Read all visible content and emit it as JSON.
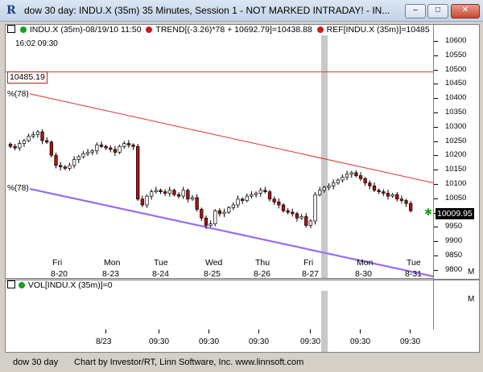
{
  "window": {
    "title": "dow 30 day: INDU.X (35m) 35 Minutes, Session 1 - NOT MARKED INTRADAY! - IN...",
    "minimize_label": "–",
    "maximize_label": "□",
    "close_label": "✕"
  },
  "header": {
    "symbol_label": "INDU.X (35m)-08/19/10 11:50",
    "trend_label": "TREND[(-3.26)*78 + 10692.79]=10438.88",
    "ref_label": "REF[INDU.X (35m)]=10485"
  },
  "chart": {
    "time_readout": "16:02  09:30",
    "ref_price_box": "10485.19",
    "trend_upper_label": "%(78)",
    "trend_lower_label": "%(78)",
    "last_price": "10009.95",
    "mode_letter": "M",
    "day_labels": [
      {
        "dow": "Fri",
        "date": "8-20"
      },
      {
        "dow": "Mon",
        "date": "8-23"
      },
      {
        "dow": "Tue",
        "date": "8-24"
      },
      {
        "dow": "Wed",
        "date": "8-25"
      },
      {
        "dow": "Thu",
        "date": "8-26"
      },
      {
        "dow": "Fri",
        "date": "8-27"
      },
      {
        "dow": "Mon",
        "date": "8-30"
      },
      {
        "dow": "Tue",
        "date": "8-31"
      }
    ],
    "y_ticks": [
      "10600",
      "10550",
      "10500",
      "10450",
      "10400",
      "10350",
      "10300",
      "10250",
      "10200",
      "10150",
      "10100",
      "10050",
      "10000",
      "9950",
      "9900",
      "9850",
      "9800"
    ],
    "colors": {
      "trend_upper": "#e03030",
      "trend_lower": "#9a6cf0",
      "ref_line": "#e03030",
      "candle": "#b01010",
      "cursor": "#c8c8c8"
    }
  },
  "volume": {
    "label": "VOL[INDU.X (35m)]=0",
    "mode_letter": "M"
  },
  "bottom_axis": {
    "labels": [
      "8/23",
      "09:30",
      "09:30",
      "09:30",
      "09:30",
      "09:30",
      "09:30"
    ]
  },
  "status": {
    "left": "dow 30 day",
    "credit": "Chart by Investor/RT, Linn Software, Inc. www.linnsoft.com"
  },
  "chart_data": {
    "type": "candlestick",
    "symbol": "INDU.X",
    "interval": "35m",
    "ylim": [
      9780,
      10610
    ],
    "closes": [
      10230,
      10225,
      10240,
      10250,
      10265,
      10270,
      10280,
      10250,
      10245,
      10200,
      10165,
      10160,
      10155,
      10165,
      10185,
      10195,
      10205,
      10210,
      10215,
      10235,
      10230,
      10225,
      10220,
      10210,
      10230,
      10240,
      10235,
      10230,
      10050,
      10030,
      10060,
      10075,
      10080,
      10075,
      10070,
      10080,
      10065,
      10060,
      10080,
      10050,
      10055,
      10015,
      9985,
      9960,
      9965,
      10010,
      10000,
      10005,
      10020,
      10030,
      10050,
      10045,
      10060,
      10065,
      10070,
      10080,
      10075,
      10050,
      10040,
      10030,
      10010,
      10005,
      10000,
      9985,
      9990,
      9960,
      9975,
      10065,
      10080,
      10090,
      10095,
      10105,
      10115,
      10125,
      10135,
      10140,
      10130,
      10120,
      10105,
      10095,
      10080,
      10075,
      10070,
      10060,
      10065,
      10050,
      10045,
      10035,
      10010
    ]
  }
}
